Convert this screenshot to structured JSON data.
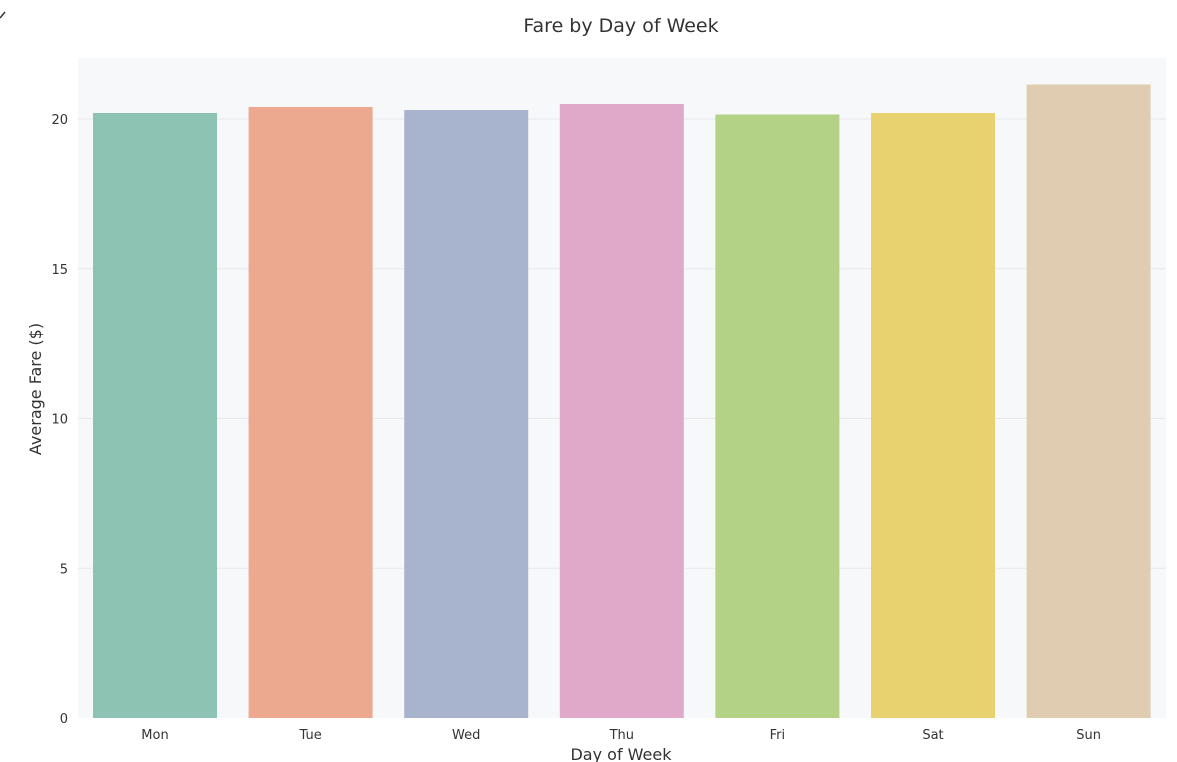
{
  "chart_data": {
    "type": "bar",
    "title": "Fare by Day of Week",
    "xlabel": "Day of Week",
    "ylabel": "Average Fare ($)",
    "categories": [
      "Mon",
      "Tue",
      "Wed",
      "Thu",
      "Fri",
      "Sat",
      "Sun"
    ],
    "values": [
      20.2,
      20.4,
      20.3,
      20.5,
      20.15,
      20.2,
      21.15
    ],
    "ylim": [
      0,
      21.3
    ],
    "yticks": [
      0,
      5,
      10,
      15,
      20
    ],
    "grid": true,
    "colors": [
      "#8dc3b3",
      "#eca98f",
      "#a8b4ce",
      "#e0a9ca",
      "#b3d285",
      "#e8d270",
      "#e0ccb0"
    ],
    "plot_background": "#f7f8fa",
    "grid_color": "#e6e8ec"
  }
}
